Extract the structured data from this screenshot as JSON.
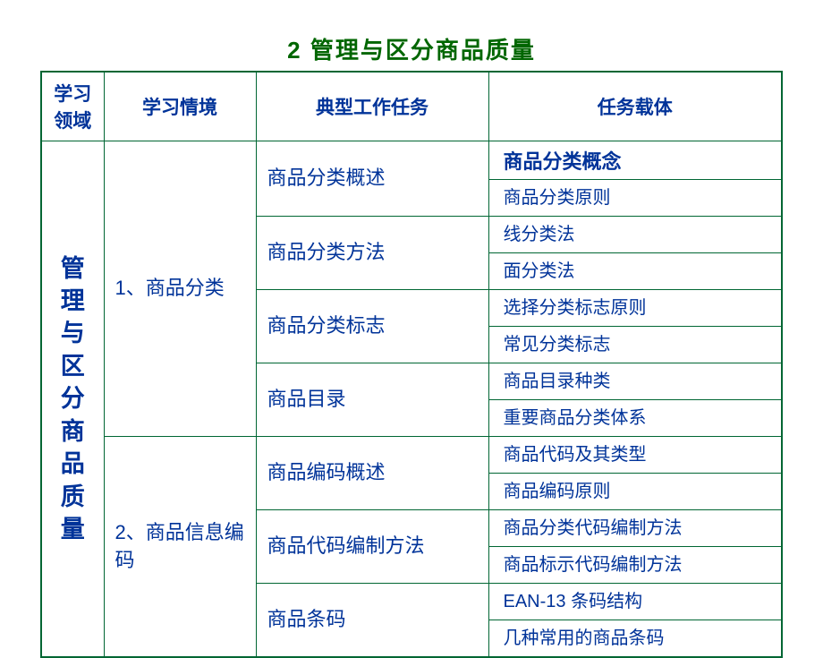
{
  "title": "2 管理与区分商品质量",
  "headers": {
    "col1": "学习领域",
    "col2": "学习情境",
    "col3": "典型工作任务",
    "col4": "任务载体"
  },
  "domain_vertical": [
    "管",
    "理",
    "与",
    "区",
    "分",
    "商",
    "品",
    "质",
    "量"
  ],
  "situations": {
    "s1": "1、商品分类",
    "s2": "2、商品信息编码"
  },
  "tasks": {
    "t1": "商品分类概述",
    "t2": "商品分类方法",
    "t3": "商品分类标志",
    "t4": "商品目录",
    "t5": "商品编码概述",
    "t6": "商品代码编制方法",
    "t7": "商品条码"
  },
  "carriers": {
    "c1a": "商品分类概念",
    "c1b": "商品分类原则",
    "c2a": "线分类法",
    "c2b": "面分类法",
    "c3a": "选择分类标志原则",
    "c3b": "常见分类标志",
    "c4a": "商品目录种类",
    "c4b": "重要商品分类体系",
    "c5a": "商品代码及其类型",
    "c5b": "商品编码原则",
    "c6a": "商品分类代码编制方法",
    "c6b": "商品标示代码编制方法",
    "c7a": "EAN-13 条码结构",
    "c7b": "几种常用的商品条码"
  },
  "colors": {
    "title": "#006600",
    "text": "#003399",
    "border": "#006633",
    "background": "#ffffff"
  }
}
